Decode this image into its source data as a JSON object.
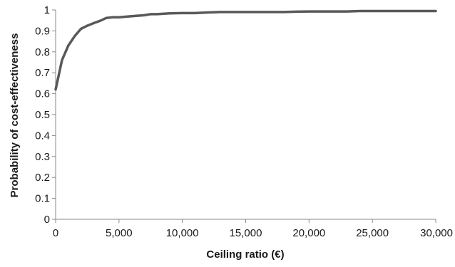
{
  "chart_data": {
    "type": "line",
    "title": "",
    "xlabel": "Ceiling ratio (€)",
    "ylabel": "Probability of cost-effectiveness",
    "xlim": [
      0,
      30000
    ],
    "ylim": [
      0,
      1
    ],
    "x_ticks": [
      0,
      5000,
      10000,
      15000,
      20000,
      25000,
      30000
    ],
    "x_tick_labels": [
      "0",
      "5,000",
      "10,000",
      "15,000",
      "20,000",
      "25,000",
      "30,000"
    ],
    "y_ticks": [
      0,
      0.1,
      0.2,
      0.3,
      0.4,
      0.5,
      0.6,
      0.7,
      0.8,
      0.9,
      1
    ],
    "y_tick_labels": [
      "0",
      "0.1",
      "0.2",
      "0.3",
      "0.4",
      "0.5",
      "0.6",
      "0.7",
      "0.8",
      "0.9",
      "1"
    ],
    "grid": false,
    "legend": "none",
    "series": [
      {
        "color": "#595959",
        "x": [
          0,
          500,
          1000,
          1500,
          2000,
          2500,
          3000,
          3500,
          4000,
          4500,
          5000,
          6000,
          7000,
          7500,
          8000,
          9000,
          10000,
          11000,
          12000,
          13000,
          14000,
          15000,
          16000,
          17000,
          18000,
          19000,
          20000,
          21000,
          22000,
          23000,
          24000,
          25000,
          26000,
          27000,
          28000,
          29000,
          30000
        ],
        "y": [
          0.62,
          0.76,
          0.83,
          0.875,
          0.91,
          0.925,
          0.937,
          0.948,
          0.962,
          0.965,
          0.965,
          0.97,
          0.975,
          0.98,
          0.98,
          0.984,
          0.985,
          0.985,
          0.988,
          0.99,
          0.99,
          0.99,
          0.99,
          0.99,
          0.99,
          0.992,
          0.993,
          0.993,
          0.993,
          0.993,
          0.995,
          0.995,
          0.995,
          0.995,
          0.995,
          0.995,
          0.995
        ]
      }
    ]
  }
}
